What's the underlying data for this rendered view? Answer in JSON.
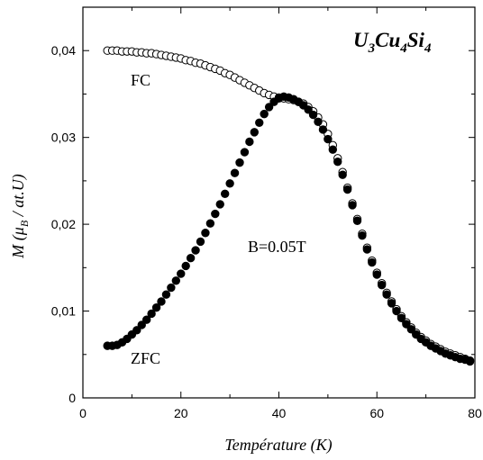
{
  "chart_data": {
    "type": "scatter",
    "title": "",
    "compound": {
      "base1": "U",
      "sub1": "3",
      "base2": "Cu",
      "sub2": "4",
      "base3": "Si",
      "sub3": "4"
    },
    "xlabel": "Température (K)",
    "ylabel": {
      "pre": "M (",
      "mu": "μ",
      "sub": "B",
      "post": " / at.U)"
    },
    "xlim": [
      0,
      80
    ],
    "ylim": [
      0,
      0.045
    ],
    "xticks": [
      {
        "value": 0,
        "label": "0"
      },
      {
        "value": 20,
        "label": "20"
      },
      {
        "value": 40,
        "label": "40"
      },
      {
        "value": 60,
        "label": "60"
      },
      {
        "value": 80,
        "label": "80"
      }
    ],
    "yticks": [
      {
        "value": 0,
        "label": "0"
      },
      {
        "value": 0.01,
        "label": "0,01"
      },
      {
        "value": 0.02,
        "label": "0,02"
      },
      {
        "value": 0.03,
        "label": "0,03"
      },
      {
        "value": 0.04,
        "label": "0,04"
      }
    ],
    "grid": false,
    "legend": "none",
    "annotations": {
      "fc": "FC",
      "zfc": "ZFC",
      "field": "B=0.05T"
    },
    "series": [
      {
        "name": "FC",
        "marker": "open-circle",
        "points": [
          [
            5,
            0.04
          ],
          [
            6,
            0.04
          ],
          [
            7,
            0.04
          ],
          [
            8,
            0.0399
          ],
          [
            9,
            0.0399
          ],
          [
            10,
            0.0399
          ],
          [
            11,
            0.0398
          ],
          [
            12,
            0.0398
          ],
          [
            13,
            0.0397
          ],
          [
            14,
            0.0397
          ],
          [
            15,
            0.0396
          ],
          [
            16,
            0.0395
          ],
          [
            17,
            0.0394
          ],
          [
            18,
            0.0393
          ],
          [
            19,
            0.0392
          ],
          [
            20,
            0.0391
          ],
          [
            21,
            0.0389
          ],
          [
            22,
            0.0388
          ],
          [
            23,
            0.0386
          ],
          [
            24,
            0.0385
          ],
          [
            25,
            0.0383
          ],
          [
            26,
            0.0381
          ],
          [
            27,
            0.0379
          ],
          [
            28,
            0.0377
          ],
          [
            29,
            0.0374
          ],
          [
            30,
            0.0372
          ],
          [
            31,
            0.0369
          ],
          [
            32,
            0.0366
          ],
          [
            33,
            0.0363
          ],
          [
            34,
            0.036
          ],
          [
            35,
            0.0357
          ],
          [
            36,
            0.0354
          ],
          [
            37,
            0.0351
          ],
          [
            38,
            0.0349
          ],
          [
            39,
            0.0347
          ],
          [
            40,
            0.0346
          ],
          [
            41,
            0.0345
          ],
          [
            42,
            0.0344
          ],
          [
            43,
            0.0343
          ],
          [
            44,
            0.0341
          ],
          [
            45,
            0.0339
          ],
          [
            46,
            0.0335
          ],
          [
            47,
            0.033
          ],
          [
            48,
            0.0323
          ],
          [
            49,
            0.0315
          ],
          [
            50,
            0.0304
          ],
          [
            51,
            0.0291
          ],
          [
            52,
            0.0276
          ],
          [
            53,
            0.026
          ],
          [
            54,
            0.0242
          ],
          [
            55,
            0.0224
          ],
          [
            56,
            0.0206
          ],
          [
            57,
            0.0189
          ],
          [
            58,
            0.0173
          ],
          [
            59,
            0.0158
          ],
          [
            60,
            0.0144
          ],
          [
            61,
            0.0132
          ],
          [
            62,
            0.0121
          ],
          [
            63,
            0.0111
          ],
          [
            64,
            0.0102
          ],
          [
            65,
            0.0094
          ],
          [
            66,
            0.0087
          ],
          [
            67,
            0.0081
          ],
          [
            68,
            0.0075
          ],
          [
            69,
            0.007
          ],
          [
            70,
            0.0066
          ],
          [
            71,
            0.0062
          ],
          [
            72,
            0.0059
          ],
          [
            73,
            0.0056
          ],
          [
            74,
            0.0053
          ],
          [
            75,
            0.0051
          ],
          [
            76,
            0.0049
          ],
          [
            77,
            0.0047
          ],
          [
            78,
            0.0045
          ],
          [
            79,
            0.0043
          ]
        ]
      },
      {
        "name": "ZFC",
        "marker": "filled-circle",
        "points": [
          [
            5,
            0.006
          ],
          [
            6,
            0.006
          ],
          [
            7,
            0.0061
          ],
          [
            8,
            0.0064
          ],
          [
            9,
            0.0068
          ],
          [
            10,
            0.0073
          ],
          [
            11,
            0.0078
          ],
          [
            12,
            0.0084
          ],
          [
            13,
            0.009
          ],
          [
            14,
            0.0097
          ],
          [
            15,
            0.0104
          ],
          [
            16,
            0.0111
          ],
          [
            17,
            0.0119
          ],
          [
            18,
            0.0127
          ],
          [
            19,
            0.0135
          ],
          [
            20,
            0.0143
          ],
          [
            21,
            0.0152
          ],
          [
            22,
            0.0161
          ],
          [
            23,
            0.017
          ],
          [
            24,
            0.018
          ],
          [
            25,
            0.019
          ],
          [
            26,
            0.0201
          ],
          [
            27,
            0.0212
          ],
          [
            28,
            0.0223
          ],
          [
            29,
            0.0235
          ],
          [
            30,
            0.0247
          ],
          [
            31,
            0.0259
          ],
          [
            32,
            0.0271
          ],
          [
            33,
            0.0283
          ],
          [
            34,
            0.0295
          ],
          [
            35,
            0.0306
          ],
          [
            36,
            0.0317
          ],
          [
            37,
            0.0327
          ],
          [
            38,
            0.0335
          ],
          [
            39,
            0.0341
          ],
          [
            40,
            0.0345
          ],
          [
            41,
            0.0347
          ],
          [
            42,
            0.0346
          ],
          [
            43,
            0.0344
          ],
          [
            44,
            0.0341
          ],
          [
            45,
            0.0337
          ],
          [
            46,
            0.0332
          ],
          [
            47,
            0.0326
          ],
          [
            48,
            0.0318
          ],
          [
            49,
            0.0309
          ],
          [
            50,
            0.0298
          ],
          [
            51,
            0.0286
          ],
          [
            52,
            0.0272
          ],
          [
            53,
            0.0257
          ],
          [
            54,
            0.024
          ],
          [
            55,
            0.0222
          ],
          [
            56,
            0.0204
          ],
          [
            57,
            0.0187
          ],
          [
            58,
            0.0171
          ],
          [
            59,
            0.0156
          ],
          [
            60,
            0.0142
          ],
          [
            61,
            0.013
          ],
          [
            62,
            0.0119
          ],
          [
            63,
            0.0109
          ],
          [
            64,
            0.01
          ],
          [
            65,
            0.0092
          ],
          [
            66,
            0.0085
          ],
          [
            67,
            0.0079
          ],
          [
            68,
            0.0073
          ],
          [
            69,
            0.0068
          ],
          [
            70,
            0.0064
          ],
          [
            71,
            0.006
          ],
          [
            72,
            0.0057
          ],
          [
            73,
            0.0054
          ],
          [
            74,
            0.0051
          ],
          [
            75,
            0.0049
          ],
          [
            76,
            0.0047
          ],
          [
            77,
            0.0045
          ],
          [
            78,
            0.0044
          ],
          [
            79,
            0.0042
          ]
        ]
      }
    ]
  }
}
